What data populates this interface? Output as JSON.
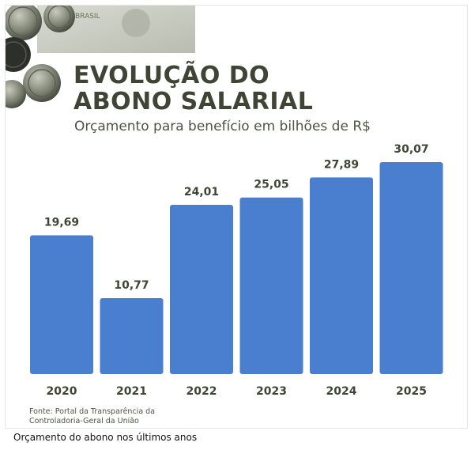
{
  "header": {
    "title_line1": "EVOLUÇÃO DO",
    "title_line2": "ABONO SALARIAL",
    "subtitle": "Orçamento para benefício em bilhões de R$"
  },
  "illustration": {
    "banknote_text": "BRASIL"
  },
  "source": {
    "line1": "Fonte: Portal da Transparência da",
    "line2": "Controladoria-Geral da União"
  },
  "caption": "Orçamento do abono nos últimos anos",
  "colors": {
    "bar": "#4a7fd0",
    "title": "#3f4534",
    "label": "#3f4534"
  },
  "chart_data": {
    "type": "bar",
    "title": "EVOLUÇÃO DO ABONO SALARIAL",
    "subtitle": "Orçamento para benefício em bilhões de R$",
    "categories": [
      "2020",
      "2021",
      "2022",
      "2023",
      "2024",
      "2025"
    ],
    "values": [
      19.69,
      10.77,
      24.01,
      25.05,
      27.89,
      30.07
    ],
    "value_labels": [
      "19,69",
      "10,77",
      "24,01",
      "25,05",
      "27,89",
      "30,07"
    ],
    "xlabel": "",
    "ylabel": "",
    "ylim": [
      0,
      30.07
    ],
    "grid": false,
    "legend": "none"
  }
}
